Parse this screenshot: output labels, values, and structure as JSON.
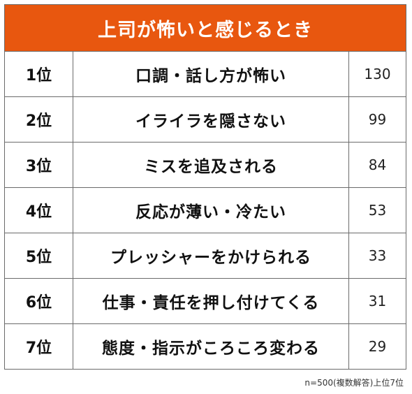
{
  "chart_data": {
    "type": "table",
    "title": "上司が怖いと感じるとき",
    "rows": [
      {
        "rank": "1位",
        "reason": "口調・話し方が怖い",
        "value": 130
      },
      {
        "rank": "2位",
        "reason": "イライラを隠さない",
        "value": 99
      },
      {
        "rank": "3位",
        "reason": "ミスを追及される",
        "value": 84
      },
      {
        "rank": "4位",
        "reason": "反応が薄い・冷たい",
        "value": 53
      },
      {
        "rank": "5位",
        "reason": "プレッシャーをかけられる",
        "value": 33
      },
      {
        "rank": "6位",
        "reason": "仕事・責任を押し付けてくる",
        "value": 31
      },
      {
        "rank": "7位",
        "reason": "態度・指示がころころ変わる",
        "value": 29
      }
    ],
    "note": "n=500(複数解答)上位7位"
  },
  "colors": {
    "header_bg": "#e8570f",
    "header_text": "#ffffff",
    "border": "#6b6b6b"
  }
}
